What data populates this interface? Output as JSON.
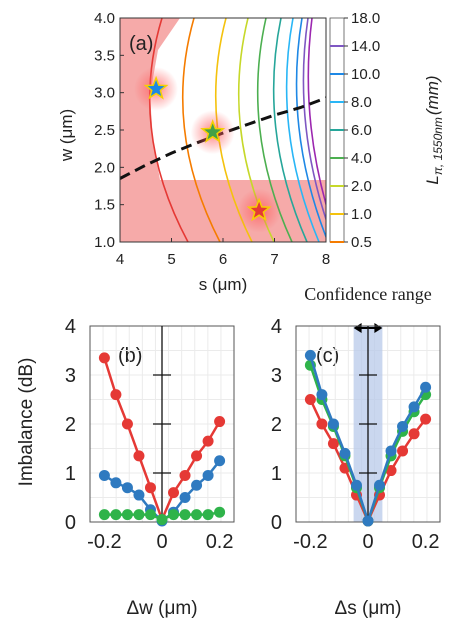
{
  "chart_data": [
    {
      "id": "a",
      "type": "contour",
      "panel_label": "(a)",
      "xlabel": "s (μm)",
      "ylabel": "w (μm)",
      "xlim": [
        4,
        8
      ],
      "ylim": [
        1.0,
        4.0
      ],
      "xticks": [
        "4",
        "5",
        "6",
        "7",
        "8"
      ],
      "yticks": [
        "1.0",
        "1.5",
        "2.0",
        "2.5",
        "3.0",
        "3.5",
        "4.0"
      ],
      "colorbar": {
        "label_main": "L",
        "label_sub": "π, 1550nm",
        "label_unit": "(mm)",
        "ticks": [
          "18.0",
          "14.0",
          "10.0",
          "8.0",
          "6.0",
          "4.0",
          "2.0",
          "1.0",
          "0.5"
        ],
        "colors": [
          "#f06a6a",
          "#e53935",
          "#f57c00",
          "#f4c20d",
          "#c6d82a",
          "#4caf50",
          "#26a69a",
          "#29b6f6",
          "#1e88e5",
          "#7e57c2",
          "#9c27b0"
        ]
      },
      "dashed_curve": [
        [
          4.0,
          1.85
        ],
        [
          4.5,
          2.03
        ],
        [
          5.0,
          2.19
        ],
        [
          5.5,
          2.33
        ],
        [
          6.0,
          2.46
        ],
        [
          6.5,
          2.58
        ],
        [
          7.0,
          2.7
        ],
        [
          7.5,
          2.8
        ],
        [
          8.0,
          2.93
        ]
      ],
      "stars": [
        {
          "s": 4.7,
          "w": 3.05,
          "color": "#1e88e5"
        },
        {
          "s": 5.8,
          "w": 2.47,
          "color": "#43a047"
        },
        {
          "s": 6.7,
          "w": 1.42,
          "color": "#e53935"
        }
      ]
    },
    {
      "id": "b",
      "type": "line",
      "panel_label": "(b)",
      "xlabel": "Δw (μm)",
      "ylabel": "Imbalance (dB)",
      "xlim": [
        -0.25,
        0.25
      ],
      "ylim": [
        0,
        4
      ],
      "xticks": [
        "-0.2",
        "0",
        "0.2"
      ],
      "yticks": [
        "0",
        "1",
        "2",
        "3",
        "4"
      ],
      "x": [
        -0.2,
        -0.16,
        -0.12,
        -0.08,
        -0.04,
        0,
        0.04,
        0.08,
        0.12,
        0.16,
        0.2
      ],
      "series": [
        {
          "color": "#e53935",
          "values": [
            3.35,
            2.6,
            2.0,
            1.35,
            0.7,
            0.05,
            0.6,
            0.95,
            1.35,
            1.65,
            2.05
          ]
        },
        {
          "color": "#2f7ac0",
          "values": [
            0.95,
            0.8,
            0.7,
            0.55,
            0.25,
            0.02,
            0.2,
            0.5,
            0.75,
            0.95,
            1.25
          ]
        },
        {
          "color": "#2fb34a",
          "values": [
            0.15,
            0.15,
            0.15,
            0.15,
            0.15,
            0.05,
            0.15,
            0.15,
            0.15,
            0.15,
            0.2
          ]
        }
      ]
    },
    {
      "id": "c",
      "type": "line",
      "panel_label": "(c)",
      "xlabel": "Δs (μm)",
      "ylabel": "",
      "annotation": "Confidence range",
      "confidence_range": [
        -0.05,
        0.05
      ],
      "xlim": [
        -0.25,
        0.25
      ],
      "ylim": [
        0,
        4
      ],
      "xticks": [
        "-0.2",
        "0",
        "0.2"
      ],
      "yticks": [
        "0",
        "1",
        "2",
        "3",
        "4"
      ],
      "x": [
        -0.2,
        -0.16,
        -0.12,
        -0.08,
        -0.04,
        0,
        0.04,
        0.08,
        0.12,
        0.16,
        0.2
      ],
      "series": [
        {
          "color": "#e53935",
          "values": [
            2.5,
            2.0,
            1.6,
            1.1,
            0.55,
            0.02,
            0.55,
            1.05,
            1.45,
            1.8,
            2.1
          ]
        },
        {
          "color": "#2fb34a",
          "values": [
            3.2,
            2.5,
            1.95,
            1.35,
            0.7,
            0.02,
            0.7,
            1.35,
            1.85,
            2.25,
            2.6
          ]
        },
        {
          "color": "#2f7ac0",
          "values": [
            3.4,
            2.6,
            2.0,
            1.4,
            0.75,
            0.02,
            0.75,
            1.45,
            1.95,
            2.35,
            2.75
          ]
        }
      ]
    }
  ]
}
